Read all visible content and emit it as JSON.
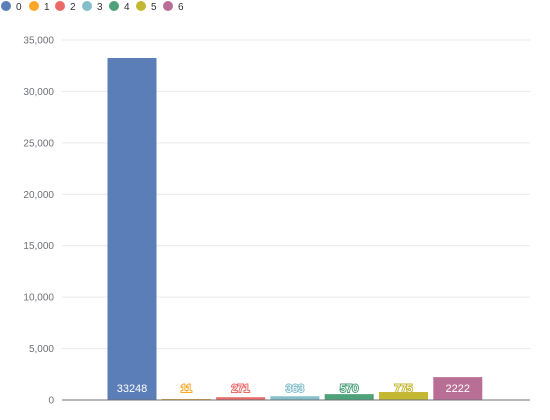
{
  "chart_data": {
    "type": "bar",
    "categories": [
      "0",
      "1",
      "2",
      "3",
      "4",
      "5",
      "6"
    ],
    "values": [
      33248,
      11,
      271,
      363,
      570,
      775,
      2222
    ],
    "data_labels": [
      "33248",
      "11",
      "271",
      "363",
      "570",
      "775",
      "2222"
    ],
    "colors": [
      "#5b7db8",
      "#f9a82a",
      "#eb6a67",
      "#84bfc9",
      "#4ea27a",
      "#c4b732",
      "#b96e95"
    ],
    "title": "",
    "xlabel": "",
    "ylabel": "",
    "ylim": [
      0,
      35000
    ],
    "yticks": [
      0,
      5000,
      10000,
      15000,
      20000,
      25000,
      30000,
      35000
    ],
    "ytick_labels": [
      "0",
      "5,000",
      "10,000",
      "15,000",
      "20,000",
      "25,000",
      "30,000",
      "35,000"
    ],
    "legend": {
      "position": "top-left",
      "entries": [
        "0",
        "1",
        "2",
        "3",
        "4",
        "5",
        "6"
      ]
    },
    "grid": true
  }
}
